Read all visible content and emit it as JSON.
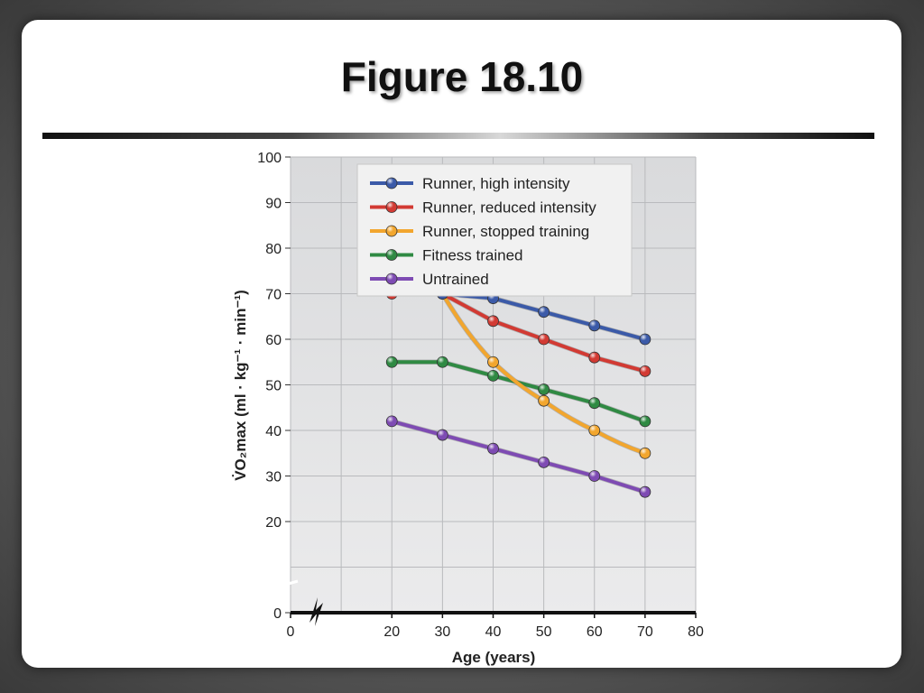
{
  "slide": {
    "title": "Figure 18.10"
  },
  "chart_data": {
    "type": "line",
    "xlabel": "Age (years)",
    "ylabel": "V̇O₂max (ml · kg⁻¹ · min⁻¹)",
    "xlim": [
      0,
      80
    ],
    "ylim": [
      0,
      100
    ],
    "xticks": [
      0,
      20,
      30,
      40,
      50,
      60,
      70,
      80
    ],
    "yticks": [
      0,
      20,
      30,
      40,
      50,
      60,
      70,
      80,
      90,
      100
    ],
    "grid": true,
    "legend_position": "top",
    "series": [
      {
        "name": "Runner, high intensity",
        "color": "#3b5aa8",
        "x": [
          30,
          40,
          50,
          60,
          70
        ],
        "y": [
          70,
          69,
          66,
          63,
          60
        ]
      },
      {
        "name": "Runner, reduced intensity",
        "color": "#d23a33",
        "x": [
          20,
          30,
          40,
          50,
          60,
          70
        ],
        "y": [
          70,
          70,
          64,
          60,
          56,
          53
        ]
      },
      {
        "name": "Runner, stopped training",
        "color": "#f2a62e",
        "x": [
          30,
          40,
          50,
          60,
          70
        ],
        "y": [
          70,
          55,
          46.5,
          40,
          35
        ]
      },
      {
        "name": "Fitness trained",
        "color": "#2f8a43",
        "x": [
          20,
          30,
          40,
          50,
          60,
          70
        ],
        "y": [
          55,
          55,
          52,
          49,
          46,
          42
        ]
      },
      {
        "name": "Untrained",
        "color": "#7e4bb3",
        "x": [
          20,
          30,
          40,
          50,
          60,
          70
        ],
        "y": [
          42,
          39,
          36,
          33,
          30,
          26.5
        ]
      }
    ]
  }
}
